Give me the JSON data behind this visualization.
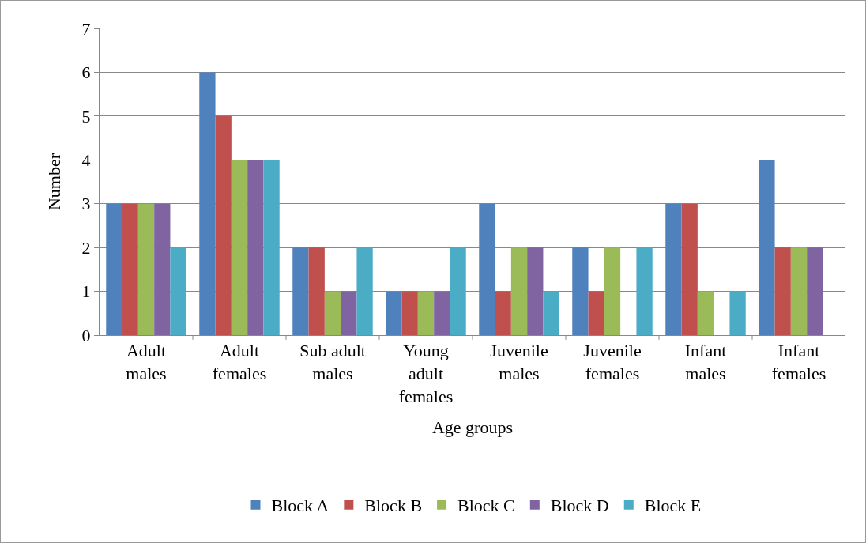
{
  "chart_data": {
    "type": "bar",
    "xlabel": "Age groups",
    "ylabel": "Number",
    "categories": [
      "Adult males",
      "Adult females",
      "Sub adult males",
      "Young adult females",
      "Juvenile males",
      "Juvenile females",
      "Infant males",
      "Infant females"
    ],
    "series": [
      {
        "name": "Block A",
        "color": "#4f81bd",
        "values": [
          3,
          6,
          2,
          1,
          3,
          2,
          3,
          4
        ]
      },
      {
        "name": "Block B",
        "color": "#c0504d",
        "values": [
          3,
          5,
          2,
          1,
          1,
          1,
          3,
          2
        ]
      },
      {
        "name": "Block C",
        "color": "#9bbb59",
        "values": [
          3,
          4,
          1,
          1,
          2,
          2,
          1,
          2
        ]
      },
      {
        "name": "Block D",
        "color": "#8064a2",
        "values": [
          3,
          4,
          1,
          1,
          2,
          0,
          0,
          2
        ]
      },
      {
        "name": "Block E",
        "color": "#4bacc6",
        "values": [
          2,
          4,
          2,
          2,
          1,
          2,
          1,
          0
        ]
      }
    ],
    "ylim": [
      0,
      7
    ],
    "yticks": [
      0,
      1,
      2,
      3,
      4,
      5,
      6,
      7
    ],
    "grid": "y",
    "legend": "bottom"
  }
}
